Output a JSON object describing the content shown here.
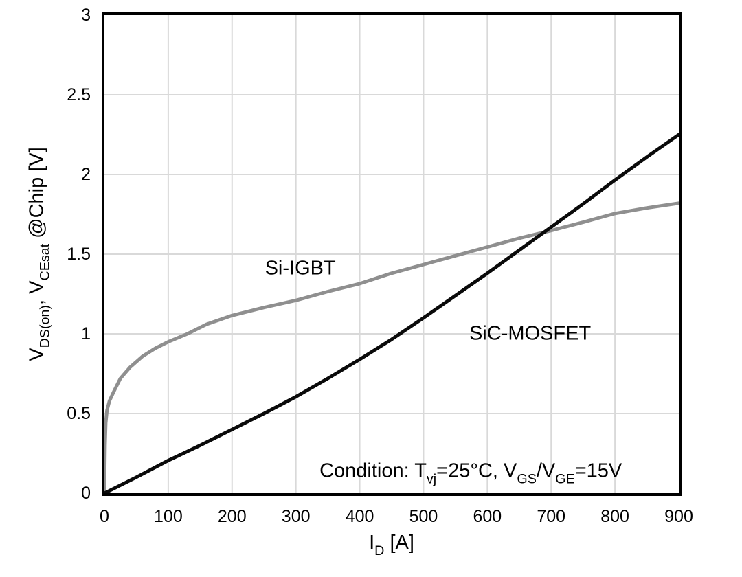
{
  "chart_data": {
    "type": "line",
    "title": "",
    "xlabel_parts": [
      [
        "I",
        false
      ],
      [
        "D",
        true
      ],
      [
        " [A]",
        false
      ]
    ],
    "ylabel_parts": [
      [
        "V",
        false
      ],
      [
        "DS(on)",
        true
      ],
      [
        ", V",
        false
      ],
      [
        "CEsat",
        true
      ],
      [
        " @Chip [V]",
        false
      ]
    ],
    "xlim": [
      0,
      900
    ],
    "ylim": [
      0,
      3
    ],
    "x_ticks": [
      0,
      100,
      200,
      300,
      400,
      500,
      600,
      700,
      800,
      900
    ],
    "y_ticks": [
      "0",
      "0.5",
      "1",
      "1.5",
      "2",
      "2.5",
      "3"
    ],
    "grid": true,
    "grid_color": "#d9d9d9",
    "frame_color": "#000000",
    "legend_position": "inline-labels",
    "series": [
      {
        "name": "Si-IGBT",
        "color": "#8f8f8f",
        "stroke_width": 5,
        "label_pos": {
          "x": 307,
          "y": 1.41
        },
        "x": [
          0,
          1,
          2,
          4,
          8,
          15,
          25,
          40,
          60,
          80,
          100,
          130,
          160,
          200,
          250,
          300,
          350,
          400,
          450,
          500,
          550,
          600,
          650,
          700,
          750,
          800,
          850,
          900
        ],
        "y": [
          0,
          0.3,
          0.44,
          0.52,
          0.58,
          0.64,
          0.72,
          0.79,
          0.86,
          0.91,
          0.95,
          1.0,
          1.06,
          1.115,
          1.165,
          1.21,
          1.265,
          1.315,
          1.38,
          1.435,
          1.49,
          1.545,
          1.6,
          1.648,
          1.7,
          1.755,
          1.79,
          1.82
        ]
      },
      {
        "name": "SiC-MOSFET",
        "color": "#0a0a0a",
        "stroke_width": 5,
        "label_pos": {
          "x": 667,
          "y": 1.0
        },
        "x": [
          0,
          50,
          100,
          150,
          200,
          250,
          300,
          350,
          400,
          450,
          500,
          550,
          600,
          650,
          700,
          750,
          800,
          850,
          900
        ],
        "y": [
          0,
          0.1,
          0.205,
          0.3,
          0.4,
          0.5,
          0.605,
          0.72,
          0.84,
          0.965,
          1.1,
          1.24,
          1.38,
          1.525,
          1.67,
          1.815,
          1.965,
          2.11,
          2.25
        ]
      }
    ],
    "annotation": {
      "parts": [
        [
          "Condition: T",
          false
        ],
        [
          "vj",
          true
        ],
        [
          "=25°C, V",
          false
        ],
        [
          "GS",
          true
        ],
        [
          "/V",
          false
        ],
        [
          "GE",
          true
        ],
        [
          "=15V",
          false
        ]
      ],
      "pos": {
        "x": 574,
        "y": 0.138
      }
    }
  }
}
